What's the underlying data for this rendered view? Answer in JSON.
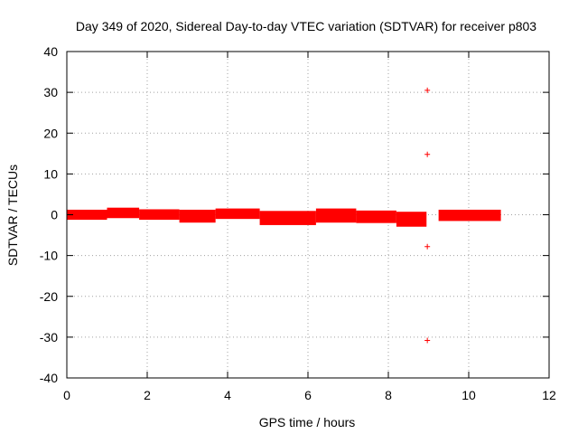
{
  "chart_data": {
    "type": "scatter",
    "title": "Day 349 of 2020, Sidereal Day-to-day VTEC variation (SDTVAR) for receiver p803",
    "xlabel": "GPS time / hours",
    "ylabel": "SDTVAR / TECUs",
    "xlim": [
      0,
      12
    ],
    "ylim": [
      -40,
      40
    ],
    "xticks": [
      0,
      2,
      4,
      6,
      8,
      10,
      12
    ],
    "yticks": [
      -40,
      -30,
      -20,
      -10,
      0,
      10,
      20,
      30,
      40
    ],
    "grid": true,
    "legend": "none",
    "marker": "+",
    "color": "#ff0000",
    "band_segments": [
      {
        "x_start": 0.0,
        "x_end": 1.0,
        "y_low": -0.9,
        "y_high": 0.9
      },
      {
        "x_start": 1.0,
        "x_end": 1.8,
        "y_low": -0.5,
        "y_high": 1.4
      },
      {
        "x_start": 1.8,
        "x_end": 2.8,
        "y_low": -0.9,
        "y_high": 1.0
      },
      {
        "x_start": 2.8,
        "x_end": 3.7,
        "y_low": -1.6,
        "y_high": 0.9
      },
      {
        "x_start": 3.7,
        "x_end": 4.8,
        "y_low": -0.7,
        "y_high": 1.2
      },
      {
        "x_start": 4.8,
        "x_end": 6.2,
        "y_low": -2.2,
        "y_high": 0.6
      },
      {
        "x_start": 6.2,
        "x_end": 7.2,
        "y_low": -1.6,
        "y_high": 1.2
      },
      {
        "x_start": 7.2,
        "x_end": 8.2,
        "y_low": -1.7,
        "y_high": 0.7
      },
      {
        "x_start": 8.2,
        "x_end": 8.95,
        "y_low": -2.6,
        "y_high": 0.4
      },
      {
        "x_start": 9.25,
        "x_end": 10.8,
        "y_low": -1.2,
        "y_high": 0.9
      }
    ],
    "outliers": [
      {
        "x": 8.97,
        "y": 30.5
      },
      {
        "x": 8.97,
        "y": 14.8
      },
      {
        "x": 8.97,
        "y": -7.8
      },
      {
        "x": 8.97,
        "y": -30.8
      }
    ]
  }
}
